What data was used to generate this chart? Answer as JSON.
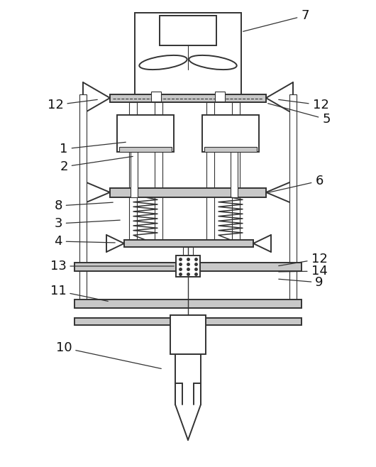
{
  "bg_color": "#ffffff",
  "line_color": "#333333",
  "gray_fill": "#c8c8c8",
  "fig_width": 5.3,
  "fig_height": 6.58,
  "dpi": 100
}
